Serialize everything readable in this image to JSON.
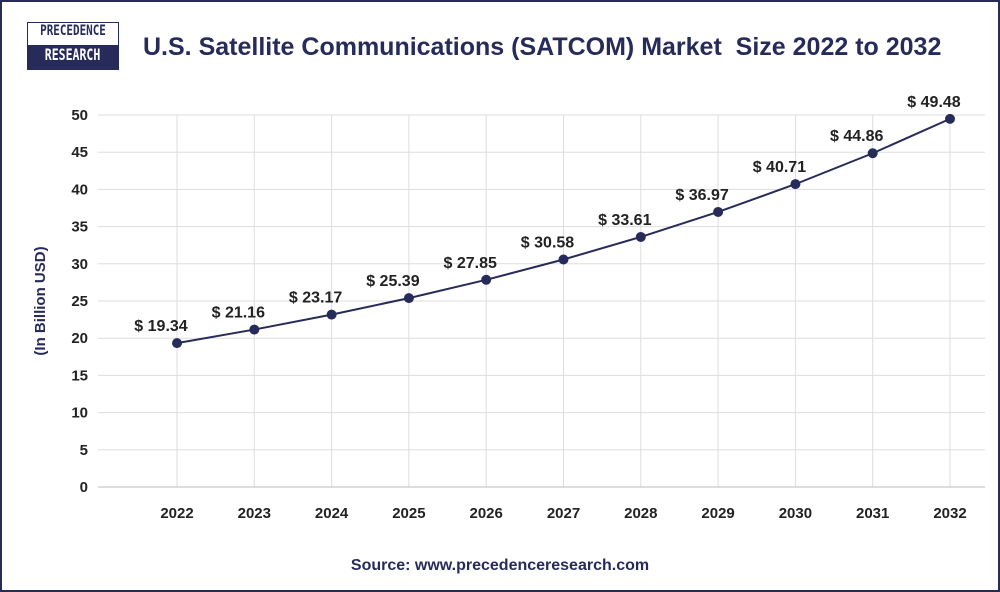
{
  "logo": {
    "line1": "PRECEDENCE",
    "line2": "RESEARCH"
  },
  "source": "Source: www.precedenceresearch.com",
  "colors": {
    "line": "#262b5a",
    "grid": "#dddddd",
    "text": "#262b5a"
  },
  "chart_data": {
    "type": "line",
    "title": "U.S. Satellite Communications (SATCOM) Market  Size 2022 to 2032",
    "xlabel": "",
    "ylabel": "(In Billion USD)",
    "categories": [
      "2022",
      "2023",
      "2024",
      "2025",
      "2026",
      "2027",
      "2028",
      "2029",
      "2030",
      "2031",
      "2032"
    ],
    "values": [
      19.34,
      21.16,
      23.17,
      25.39,
      27.85,
      30.58,
      33.61,
      36.97,
      40.71,
      44.86,
      49.48
    ],
    "data_labels": [
      "$ 19.34",
      "$ 21.16",
      "$ 23.17",
      "$ 25.39",
      "$ 27.85",
      "$ 30.58",
      "$ 33.61",
      "$ 36.97",
      "$ 40.71",
      "$ 44.86",
      "$ 49.48"
    ],
    "ylim": [
      0,
      50
    ],
    "yticks": [
      "0",
      "5",
      "10",
      "15",
      "20",
      "25",
      "30",
      "35",
      "40",
      "45",
      "50"
    ],
    "grid": true,
    "legend": "none"
  }
}
